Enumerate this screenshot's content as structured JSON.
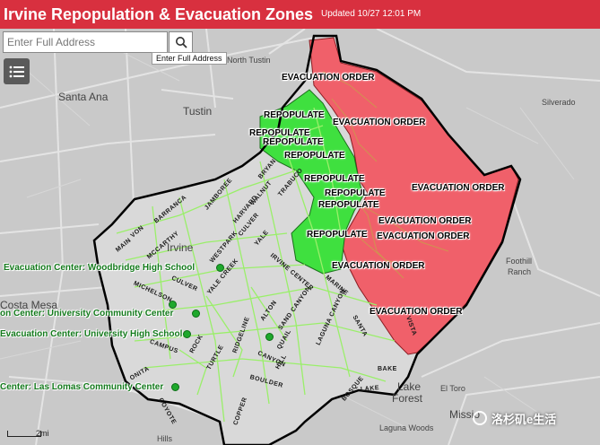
{
  "header": {
    "title": "Irvine Repopulation & Evacuation Zones",
    "updated": "Updated 10/27 12:01 PM"
  },
  "search": {
    "placeholder": "Enter Full Address",
    "tooltip": "Enter Full Address"
  },
  "places": {
    "north_tustin": "North Tustin",
    "santa_ana": "Santa Ana",
    "tustin": "Tustin",
    "silverado": "Silverado",
    "irvine": "Irvine",
    "costa_mesa": "Costa Mesa",
    "foothill_ranch_1": "Foothill",
    "foothill_ranch_2": "Ranch",
    "lake_forest_1": "Lake",
    "lake_forest_2": "Forest",
    "el_toro": "El Toro",
    "mission_viejo": "Missio",
    "laguna_woods": "Laguna Woods",
    "hills": "Hills"
  },
  "zones": {
    "evacuation_order": "EVACUATION ORDER",
    "repopulate": "REPOPULATE"
  },
  "evacuation_centers": [
    "Evacuation Center: Woodbridge High School",
    "on Center: University Community Center",
    "Evacuation Center: University High School",
    "Center: Las Lomas Community Center"
  ],
  "streets": {
    "bryan": "BRYAN",
    "trabuco": "TRABUCO",
    "walnut": "WALNUT",
    "harvard": "HARVARD",
    "culver": "CULVER",
    "jamboree": "JAMBOREE",
    "yale": "YALE",
    "westpark": "WESTPARK",
    "yale_creek": "YALE CREEK",
    "irvine_center": "IRVINE CENTER",
    "alton": "ALTON",
    "sand_canyon": "SAND CANYON",
    "marine": "MARINE",
    "laguna_canyon": "LAGUNA CANYON",
    "santa": "SANTA",
    "ridgeline": "RIDGELINE",
    "michelson": "MICHELSON",
    "campus": "CAMPUS",
    "culver_2": "CULVER",
    "turtle": "TURTLE",
    "rock": "ROCK",
    "canyon": "CANYON",
    "boulder": "BOULDER",
    "quail": "QUAIL",
    "bake": "BAKE",
    "lake": "LAKE",
    "bosque": "BOSQUE",
    "hill": "HILL",
    "coyote": "COYOTE",
    "copper": "COPPER",
    "onita": "ONITA",
    "barranca": "BARRANCA",
    "von": "VON",
    "mccarthy": "MCCARTHY",
    "main": "MAIN",
    "vista": "VISTA"
  },
  "scale": {
    "label": "2mi"
  },
  "watermark": "洛杉矶e生活",
  "colors": {
    "header": "#d8303f",
    "evacuation_fill": "#f0606a",
    "repopulate_fill": "#3fe03f",
    "boundary": "#000000",
    "evac_center_text": "#137a1c",
    "roads": "#9aef6a"
  }
}
